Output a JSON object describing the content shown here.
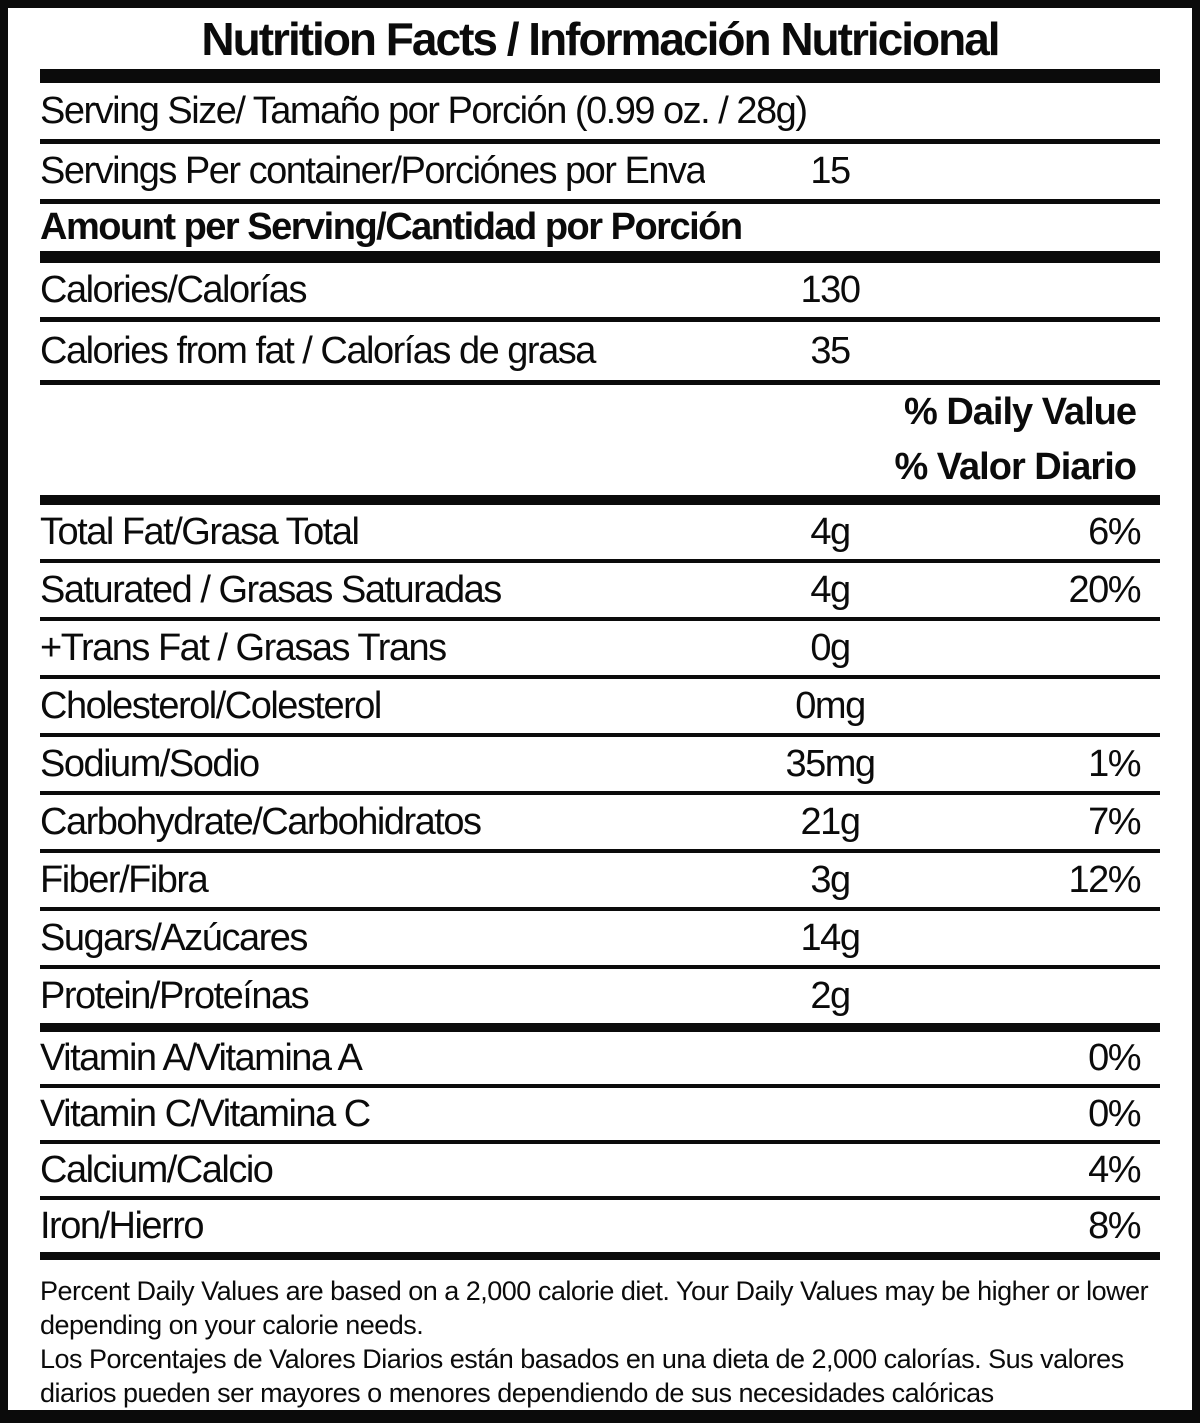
{
  "title": "Nutrition Facts / Información Nutricional",
  "serving": {
    "serving_size": "Serving Size/ Tamaño por Porción  (0.99 oz. / 28g)",
    "servings_per_container_label": "Servings Per container/Porciónes por Envase:",
    "servings_per_container_value": "15"
  },
  "section": {
    "amount_per_serving": "Amount per Serving/Cantidad por Porción",
    "daily_value_en": "% Daily Value",
    "daily_value_es": "% Valor Diario"
  },
  "calories": {
    "label": "Calories/Calorías",
    "value": "130"
  },
  "calories_from_fat": {
    "label": "Calories from fat / Calorías de grasa",
    "value": "35"
  },
  "nutrients": [
    {
      "label": "Total Fat/Grasa Total",
      "amount": "4g",
      "dv": "6%"
    },
    {
      "label": "Saturated / Grasas Saturadas",
      "amount": "4g",
      "dv": "20%"
    },
    {
      "label": "+Trans Fat / Grasas Trans",
      "amount": "0g",
      "dv": ""
    },
    {
      "label": "Cholesterol/Colesterol",
      "amount": "0mg",
      "dv": ""
    },
    {
      "label": "Sodium/Sodio",
      "amount": "35mg",
      "dv": "1%"
    },
    {
      "label": "Carbohydrate/Carbohidratos",
      "amount": "21g",
      "dv": "7%"
    },
    {
      "label": "Fiber/Fibra",
      "amount": "3g",
      "dv": "12%"
    },
    {
      "label": "Sugars/Azúcares",
      "amount": "14g",
      "dv": ""
    },
    {
      "label": "Protein/Proteínas",
      "amount": "2g",
      "dv": ""
    }
  ],
  "vitamins": [
    {
      "label": "Vitamin A/Vitamina A",
      "dv": "0%"
    },
    {
      "label": "Vitamin C/Vitamina C",
      "dv": "0%"
    },
    {
      "label": "Calcium/Calcio",
      "dv": "4%"
    },
    {
      "label": "Iron/Hierro",
      "dv": "8%"
    }
  ],
  "footnotes": {
    "en": "Percent Daily Values are based on a 2,000 calorie diet. Your Daily Values may be higher or lower depending on your calorie needs.",
    "es": "Los Porcentajes de Valores Diarios están basados en una dieta de 2,000 calorías. Sus valores diarios pueden ser mayores o menores dependiendo de sus necesidades calóricas"
  }
}
